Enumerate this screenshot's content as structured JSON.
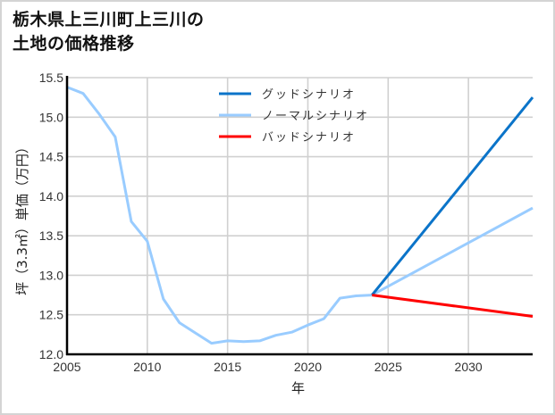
{
  "title": {
    "line1": "栃木県上三川町上三川の",
    "line2": "土地の価格推移"
  },
  "chart_data": {
    "type": "line",
    "title": "栃木県上三川町上三川の土地の価格推移",
    "xlabel": "年",
    "ylabel": "坪（3.3㎡）単価（万円）",
    "xlim": [
      2005,
      2034
    ],
    "ylim": [
      12.0,
      15.5
    ],
    "xticks": [
      2005,
      2010,
      2015,
      2020,
      2025,
      2030
    ],
    "xtick_labels": [
      "2005",
      "2010",
      "2015",
      "2020",
      "2025",
      "2030"
    ],
    "yticks": [
      12.0,
      12.5,
      13.0,
      13.5,
      14.0,
      14.5,
      15.0,
      15.5
    ],
    "ytick_labels": [
      "12.0",
      "12.5",
      "13.0",
      "13.5",
      "14.0",
      "14.5",
      "15.0",
      "15.5"
    ],
    "grid": true,
    "legend_position": "upper center",
    "series": [
      {
        "name": "グッドシナリオ",
        "color": "#0b74c9",
        "x": [
          2024,
          2034
        ],
        "values": [
          12.75,
          15.25
        ]
      },
      {
        "name": "ノーマルシナリオ",
        "color": "#99ccff",
        "x": [
          2005,
          2006,
          2007,
          2008,
          2009,
          2010,
          2011,
          2012,
          2013,
          2014,
          2015,
          2016,
          2017,
          2018,
          2019,
          2020,
          2021,
          2022,
          2023,
          2024,
          2034
        ],
        "values": [
          15.38,
          15.3,
          15.04,
          14.75,
          13.68,
          13.43,
          12.7,
          12.4,
          12.27,
          12.14,
          12.17,
          12.16,
          12.17,
          12.24,
          12.28,
          12.37,
          12.45,
          12.71,
          12.74,
          12.75,
          13.85
        ]
      },
      {
        "name": "バッドシナリオ",
        "color": "#ff0000",
        "x": [
          2024,
          2034
        ],
        "values": [
          12.75,
          12.48
        ]
      }
    ]
  }
}
